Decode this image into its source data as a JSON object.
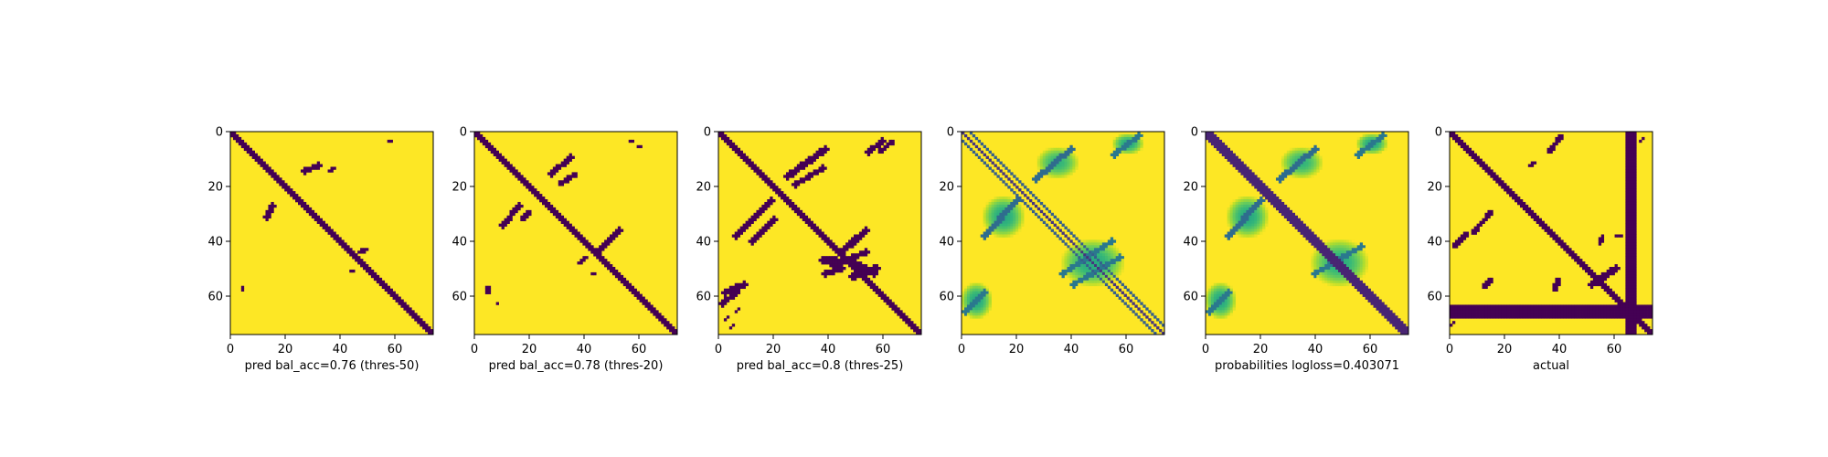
{
  "chart_data": [
    {
      "type": "heatmap",
      "title": "",
      "xlabel": "pred bal_acc=0.76 (thres-50)",
      "ylabel": "",
      "matrix_size": 75,
      "xlim": [
        0,
        74
      ],
      "ylim": [
        74,
        0
      ],
      "x_ticks": [
        0,
        20,
        40,
        60
      ],
      "y_ticks": [
        0,
        20,
        40,
        60
      ],
      "colormap": "viridis",
      "background_value": 1,
      "foreground_value": 0,
      "features": [
        {
          "kind": "diagonal",
          "from": 0,
          "to": 74,
          "halfwidth": 1.3,
          "value": 0
        },
        {
          "kind": "segment",
          "x0": 27,
          "y0": 14,
          "x1": 32,
          "y1": 12,
          "width": 1.0,
          "value": 0
        },
        {
          "kind": "segment",
          "x0": 36,
          "y0": 14,
          "x1": 38,
          "y1": 13,
          "width": 0.8,
          "value": 0
        },
        {
          "kind": "segment",
          "x0": 13,
          "y0": 31,
          "x1": 15,
          "y1": 27,
          "width": 1.0,
          "value": 0
        },
        {
          "kind": "segment",
          "x0": 47,
          "y0": 44,
          "x1": 50,
          "y1": 43,
          "width": 0.8,
          "value": 0
        },
        {
          "kind": "segment",
          "x0": 44,
          "y0": 51,
          "x1": 45,
          "y1": 51,
          "width": 0.8,
          "value": 0
        },
        {
          "kind": "segment",
          "x0": 58,
          "y0": 3,
          "x1": 59,
          "y1": 3,
          "width": 0.8,
          "value": 0
        },
        {
          "kind": "segment",
          "x0": 4,
          "y0": 57,
          "x1": 4,
          "y1": 58,
          "width": 0.8,
          "value": 0
        }
      ]
    },
    {
      "type": "heatmap",
      "title": "",
      "xlabel": "pred bal_acc=0.78 (thres-20)",
      "ylabel": "",
      "matrix_size": 75,
      "xlim": [
        0,
        74
      ],
      "ylim": [
        74,
        0
      ],
      "x_ticks": [
        0,
        20,
        40,
        60
      ],
      "y_ticks": [
        0,
        20,
        40,
        60
      ],
      "colormap": "viridis",
      "background_value": 1,
      "foreground_value": 0,
      "features": [
        {
          "kind": "diagonal",
          "from": 0,
          "to": 74,
          "halfwidth": 1.5,
          "value": 0
        },
        {
          "kind": "segment",
          "x0": 28,
          "y0": 15,
          "x1": 35,
          "y1": 9,
          "width": 1.0,
          "value": 0
        },
        {
          "kind": "segment",
          "x0": 31,
          "y0": 19,
          "x1": 37,
          "y1": 15,
          "width": 0.9,
          "value": 0
        },
        {
          "kind": "segment",
          "x0": 10,
          "y0": 34,
          "x1": 16,
          "y1": 27,
          "width": 1.0,
          "value": 0
        },
        {
          "kind": "segment",
          "x0": 17,
          "y0": 32,
          "x1": 20,
          "y1": 29,
          "width": 0.8,
          "value": 0
        },
        {
          "kind": "segment",
          "x0": 45,
          "y0": 44,
          "x1": 53,
          "y1": 36,
          "width": 1.0,
          "value": 0
        },
        {
          "kind": "segment",
          "x0": 38,
          "y0": 48,
          "x1": 41,
          "y1": 46,
          "width": 0.8,
          "value": 0
        },
        {
          "kind": "segment",
          "x0": 43,
          "y0": 52,
          "x1": 44,
          "y1": 52,
          "width": 0.8,
          "value": 0
        },
        {
          "kind": "segment",
          "x0": 57,
          "y0": 3,
          "x1": 58,
          "y1": 3,
          "width": 0.8,
          "value": 0
        },
        {
          "kind": "segment",
          "x0": 60,
          "y0": 5,
          "x1": 61,
          "y1": 5,
          "width": 0.8,
          "value": 0
        },
        {
          "kind": "segment",
          "x0": 4,
          "y0": 57,
          "x1": 5,
          "y1": 59,
          "width": 0.9,
          "value": 0
        },
        {
          "kind": "segment",
          "x0": 8,
          "y0": 63,
          "x1": 8,
          "y1": 63,
          "width": 0.6,
          "value": 0
        }
      ]
    },
    {
      "type": "heatmap",
      "title": "",
      "xlabel": "pred bal_acc=0.8 (thres-25)",
      "ylabel": "",
      "matrix_size": 75,
      "xlim": [
        0,
        74
      ],
      "ylim": [
        74,
        0
      ],
      "x_ticks": [
        0,
        20,
        40,
        60
      ],
      "y_ticks": [
        0,
        20,
        40,
        60
      ],
      "colormap": "viridis",
      "background_value": 1,
      "foreground_value": 0,
      "features": [
        {
          "kind": "diagonal",
          "from": 0,
          "to": 74,
          "halfwidth": 1.8,
          "value": 0
        },
        {
          "kind": "segment",
          "x0": 25,
          "y0": 16,
          "x1": 39,
          "y1": 6,
          "width": 1.2,
          "value": 0
        },
        {
          "kind": "segment",
          "x0": 28,
          "y0": 19,
          "x1": 38,
          "y1": 13,
          "width": 1.0,
          "value": 0
        },
        {
          "kind": "segment",
          "x0": 6,
          "y0": 38,
          "x1": 19,
          "y1": 25,
          "width": 1.3,
          "value": 0
        },
        {
          "kind": "segment",
          "x0": 12,
          "y0": 40,
          "x1": 20,
          "y1": 32,
          "width": 1.0,
          "value": 0
        },
        {
          "kind": "segment",
          "x0": 45,
          "y0": 44,
          "x1": 54,
          "y1": 36,
          "width": 1.2,
          "value": 0
        },
        {
          "kind": "segment",
          "x0": 42,
          "y0": 49,
          "x1": 54,
          "y1": 44,
          "width": 1.0,
          "value": 0
        },
        {
          "kind": "segment",
          "x0": 38,
          "y0": 47,
          "x1": 43,
          "y1": 47,
          "width": 1.0,
          "value": 0
        },
        {
          "kind": "segment",
          "x0": 39,
          "y0": 52,
          "x1": 45,
          "y1": 50,
          "width": 1.0,
          "value": 0
        },
        {
          "kind": "segment",
          "x0": 49,
          "y0": 53,
          "x1": 58,
          "y1": 50,
          "width": 1.3,
          "value": 0
        },
        {
          "kind": "segment",
          "x0": 49,
          "y0": 47,
          "x1": 57,
          "y1": 52,
          "width": 1.0,
          "value": 0
        },
        {
          "kind": "segment",
          "x0": 55,
          "y0": 7,
          "x1": 60,
          "y1": 3,
          "width": 1.0,
          "value": 0
        },
        {
          "kind": "segment",
          "x0": 59,
          "y0": 7,
          "x1": 64,
          "y1": 3,
          "width": 0.9,
          "value": 0
        },
        {
          "kind": "segment",
          "x0": 2,
          "y0": 59,
          "x1": 9,
          "y1": 56,
          "width": 1.2,
          "value": 0
        },
        {
          "kind": "segment",
          "x0": 1,
          "y0": 63,
          "x1": 6,
          "y1": 59,
          "width": 1.0,
          "value": 0
        },
        {
          "kind": "segment",
          "x0": 2,
          "y0": 69,
          "x1": 3,
          "y1": 68,
          "width": 0.7,
          "value": 0
        },
        {
          "kind": "segment",
          "x0": 6,
          "y0": 66,
          "x1": 7,
          "y1": 65,
          "width": 0.7,
          "value": 0
        },
        {
          "kind": "segment",
          "x0": 4,
          "y0": 72,
          "x1": 5,
          "y1": 71,
          "width": 0.7,
          "value": 0
        }
      ]
    },
    {
      "type": "heatmap",
      "title": "",
      "xlabel": "",
      "ylabel": "",
      "matrix_size": 75,
      "xlim": [
        0,
        74
      ],
      "ylim": [
        74,
        0
      ],
      "x_ticks": [
        0,
        20,
        40,
        60
      ],
      "y_ticks": [
        0,
        20,
        40,
        60
      ],
      "colormap": "viridis",
      "background_value": 1,
      "features": [
        {
          "kind": "diagonal",
          "from": 0,
          "to": 74,
          "halfwidth": 0.7,
          "value": 0.15
        },
        {
          "kind": "offdiagonal",
          "offset": 3,
          "halfwidth": 0.7,
          "value": 0.3
        },
        {
          "kind": "offdiagonal",
          "offset": -3,
          "halfwidth": 0.7,
          "value": 0.3
        },
        {
          "kind": "blob",
          "cx": 35,
          "cy": 11,
          "rx": 8,
          "ry": 6,
          "value": 0.65
        },
        {
          "kind": "segment",
          "x0": 27,
          "y0": 17,
          "x1": 40,
          "y1": 6,
          "width": 1.1,
          "value": 0.35
        },
        {
          "kind": "blob",
          "cx": 15,
          "cy": 31,
          "rx": 8,
          "ry": 8,
          "value": 0.6
        },
        {
          "kind": "segment",
          "x0": 8,
          "y0": 38,
          "x1": 20,
          "y1": 25,
          "width": 1.1,
          "value": 0.35
        },
        {
          "kind": "blob",
          "cx": 48,
          "cy": 48,
          "rx": 12,
          "ry": 9,
          "value": 0.6
        },
        {
          "kind": "segment",
          "x0": 37,
          "y0": 52,
          "x1": 55,
          "y1": 40,
          "width": 1.0,
          "value": 0.4
        },
        {
          "kind": "segment",
          "x0": 41,
          "y0": 56,
          "x1": 58,
          "y1": 46,
          "width": 1.0,
          "value": 0.4
        },
        {
          "kind": "blob",
          "cx": 61,
          "cy": 4,
          "rx": 6,
          "ry": 4,
          "value": 0.6
        },
        {
          "kind": "segment",
          "x0": 56,
          "y0": 8,
          "x1": 65,
          "y1": 1,
          "width": 1.0,
          "value": 0.4
        },
        {
          "kind": "blob",
          "cx": 5,
          "cy": 62,
          "rx": 6,
          "ry": 7,
          "value": 0.6
        },
        {
          "kind": "segment",
          "x0": 1,
          "y0": 66,
          "x1": 8,
          "y1": 59,
          "width": 1.0,
          "value": 0.4
        }
      ]
    },
    {
      "type": "heatmap",
      "title": "",
      "xlabel": "probabilities logloss=0.403071",
      "ylabel": "",
      "matrix_size": 75,
      "xlim": [
        0,
        74
      ],
      "ylim": [
        74,
        0
      ],
      "x_ticks": [
        0,
        20,
        40,
        60
      ],
      "y_ticks": [
        0,
        20,
        40,
        60
      ],
      "colormap": "viridis",
      "background_value": 1,
      "features": [
        {
          "kind": "diagonal",
          "from": 0,
          "to": 74,
          "halfwidth": 2.2,
          "value": 0.1
        },
        {
          "kind": "blob",
          "cx": 35,
          "cy": 11,
          "rx": 8,
          "ry": 6,
          "value": 0.65
        },
        {
          "kind": "segment",
          "x0": 27,
          "y0": 17,
          "x1": 40,
          "y1": 6,
          "width": 1.1,
          "value": 0.35
        },
        {
          "kind": "blob",
          "cx": 15,
          "cy": 31,
          "rx": 8,
          "ry": 8,
          "value": 0.6
        },
        {
          "kind": "segment",
          "x0": 8,
          "y0": 38,
          "x1": 20,
          "y1": 25,
          "width": 1.1,
          "value": 0.35
        },
        {
          "kind": "blob",
          "cx": 49,
          "cy": 48,
          "rx": 11,
          "ry": 9,
          "value": 0.62
        },
        {
          "kind": "segment",
          "x0": 40,
          "y0": 52,
          "x1": 57,
          "y1": 42,
          "width": 1.0,
          "value": 0.4
        },
        {
          "kind": "blob",
          "cx": 61,
          "cy": 4,
          "rx": 6,
          "ry": 4,
          "value": 0.6
        },
        {
          "kind": "segment",
          "x0": 56,
          "y0": 8,
          "x1": 65,
          "y1": 1,
          "width": 1.0,
          "value": 0.4
        },
        {
          "kind": "blob",
          "cx": 5,
          "cy": 62,
          "rx": 6,
          "ry": 7,
          "value": 0.6
        },
        {
          "kind": "segment",
          "x0": 1,
          "y0": 66,
          "x1": 8,
          "y1": 59,
          "width": 1.0,
          "value": 0.4
        }
      ]
    },
    {
      "type": "heatmap",
      "title": "",
      "xlabel": "actual",
      "ylabel": "",
      "matrix_size": 75,
      "xlim": [
        0,
        74
      ],
      "ylim": [
        74,
        0
      ],
      "x_ticks": [
        0,
        20,
        40,
        60
      ],
      "y_ticks": [
        0,
        20,
        40,
        60
      ],
      "colormap": "viridis",
      "background_value": 1,
      "foreground_value": 0,
      "features": [
        {
          "kind": "diagonal",
          "from": 0,
          "to": 74,
          "halfwidth": 1.0,
          "value": 0
        },
        {
          "kind": "col_band",
          "c0": 65,
          "c1": 68,
          "value": 0
        },
        {
          "kind": "row_band",
          "r0": 64,
          "r1": 68,
          "value": 0
        },
        {
          "kind": "segment",
          "x0": 36,
          "y0": 7,
          "x1": 41,
          "y1": 1,
          "width": 0.9,
          "value": 0
        },
        {
          "kind": "segment",
          "x0": 29,
          "y0": 12,
          "x1": 31,
          "y1": 11,
          "width": 0.8,
          "value": 0
        },
        {
          "kind": "segment",
          "x0": 8,
          "y0": 37,
          "x1": 15,
          "y1": 29,
          "width": 0.9,
          "value": 0
        },
        {
          "kind": "segment",
          "x0": 1,
          "y0": 42,
          "x1": 6,
          "y1": 37,
          "width": 0.9,
          "value": 0
        },
        {
          "kind": "segment",
          "x0": 12,
          "y0": 57,
          "x1": 15,
          "y1": 54,
          "width": 0.9,
          "value": 0
        },
        {
          "kind": "segment",
          "x0": 38,
          "y0": 58,
          "x1": 40,
          "y1": 54,
          "width": 0.9,
          "value": 0
        },
        {
          "kind": "segment",
          "x0": 52,
          "y0": 56,
          "x1": 61,
          "y1": 50,
          "width": 1.2,
          "value": 0
        },
        {
          "kind": "segment",
          "x0": 55,
          "y0": 41,
          "x1": 56,
          "y1": 38,
          "width": 0.8,
          "value": 0
        },
        {
          "kind": "segment",
          "x0": 61,
          "y0": 38,
          "x1": 63,
          "y1": 38,
          "width": 0.7,
          "value": 0
        },
        {
          "kind": "segment",
          "x0": 70,
          "y0": 3,
          "x1": 71,
          "y1": 2,
          "width": 0.7,
          "value": 0
        },
        {
          "kind": "segment",
          "x0": 0,
          "y0": 71,
          "x1": 1,
          "y1": 70,
          "width": 0.7,
          "value": 0
        }
      ]
    }
  ]
}
